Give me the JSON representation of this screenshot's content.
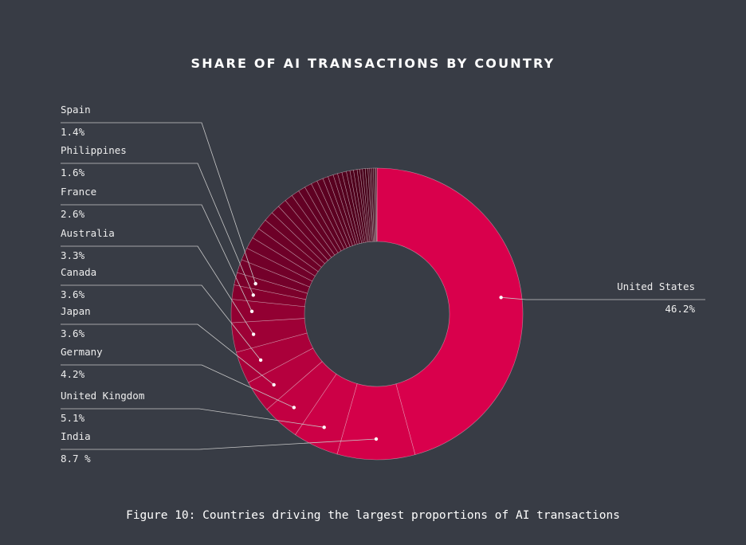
{
  "chart_data": {
    "type": "pie",
    "title": "SHARE OF AI TRANSACTIONS BY COUNTRY",
    "caption": "Figure 10: Countries driving the largest proportions of AI transactions",
    "labeled_slices": [
      {
        "name": "United States",
        "value": 46.2,
        "value_label": "46.2%",
        "color": "#d9004c"
      },
      {
        "name": "India",
        "value": 8.7,
        "value_label": "8.7 %",
        "color": "#d40049"
      },
      {
        "name": "United Kingdom",
        "value": 5.1,
        "value_label": "5.1%",
        "color": "#cc0046"
      },
      {
        "name": "Germany",
        "value": 4.2,
        "value_label": "4.2%",
        "color": "#c20042"
      },
      {
        "name": "Japan",
        "value": 3.6,
        "value_label": "3.6%",
        "color": "#b6003e"
      },
      {
        "name": "Canada",
        "value": 3.6,
        "value_label": "3.6%",
        "color": "#aa003a"
      },
      {
        "name": "Australia",
        "value": 3.3,
        "value_label": "3.3%",
        "color": "#9e0036"
      },
      {
        "name": "France",
        "value": 2.6,
        "value_label": "2.6%",
        "color": "#920032"
      },
      {
        "name": "Philippines",
        "value": 1.6,
        "value_label": "1.6%",
        "color": "#86002e"
      },
      {
        "name": "Spain",
        "value": 1.4,
        "value_label": "1.4%",
        "color": "#7c002b"
      }
    ],
    "unlabeled_slices": [
      1.5,
      1.4,
      1.3,
      1.2,
      1.2,
      1.1,
      1.0,
      1.0,
      0.9,
      0.9,
      0.8,
      0.8,
      0.7,
      0.7,
      0.6,
      0.6,
      0.5,
      0.5,
      0.5,
      0.4,
      0.4,
      0.4,
      0.3,
      0.3,
      0.3,
      0.3,
      0.2,
      0.2,
      0.2,
      0.2,
      0.1,
      0.1
    ],
    "unlabeled_color_start": "#74002a",
    "unlabeled_color_end": "#3a0014",
    "slice_border_color": "#ffffff",
    "legend": "leader-lines"
  }
}
